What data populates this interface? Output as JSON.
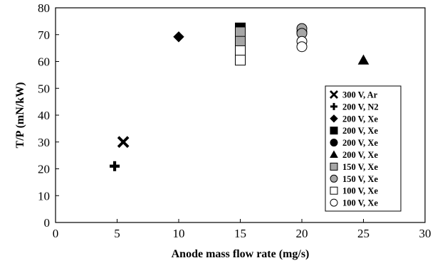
{
  "chart_data": {
    "type": "scatter",
    "xlabel": "Anode mass flow rate (mg/s)",
    "ylabel": "T/P (mN/kW)",
    "xlim": [
      0,
      30
    ],
    "ylim": [
      0,
      80
    ],
    "xticks": [
      0,
      5,
      10,
      15,
      20,
      25,
      30
    ],
    "yticks": [
      0,
      10,
      20,
      30,
      40,
      50,
      60,
      70,
      80
    ],
    "grid": false,
    "legend_position": "right, lower",
    "series": [
      {
        "name": "300 V, Ar",
        "marker": "x",
        "fill": "#000000",
        "points": [
          [
            5.5,
            30
          ]
        ]
      },
      {
        "name": "200 V, N2",
        "marker": "plus",
        "fill": "#000000",
        "points": [
          [
            4.8,
            21
          ]
        ]
      },
      {
        "name": "200 V, Xe",
        "marker": "diamond",
        "fill": "#000000",
        "points": [
          [
            10,
            69.2
          ]
        ]
      },
      {
        "name": "200 V, Xe",
        "marker": "square",
        "fill": "#000000",
        "points": [
          [
            15,
            72.5
          ],
          [
            15,
            70
          ]
        ]
      },
      {
        "name": "200 V, Xe",
        "marker": "circle",
        "fill": "#000000",
        "points": [
          [
            20,
            71
          ]
        ]
      },
      {
        "name": "200 V, Xe",
        "marker": "triangle",
        "fill": "#000000",
        "points": [
          [
            25,
            60.5
          ]
        ]
      },
      {
        "name": "150 V, Xe",
        "marker": "square",
        "fill": "#a6a6a6",
        "points": [
          [
            15,
            71
          ],
          [
            15,
            67.5
          ]
        ]
      },
      {
        "name": "150 V, Xe",
        "marker": "circle",
        "fill": "#a6a6a6",
        "points": [
          [
            20,
            72.3
          ],
          [
            20,
            70.5
          ]
        ]
      },
      {
        "name": "100 V, Xe",
        "marker": "square",
        "fill": "#ffffff",
        "points": [
          [
            15,
            64
          ],
          [
            15,
            60.5
          ]
        ]
      },
      {
        "name": "100 V, Xe",
        "marker": "circle",
        "fill": "#ffffff",
        "points": [
          [
            20,
            67.5
          ],
          [
            20,
            65.5
          ]
        ]
      }
    ]
  }
}
